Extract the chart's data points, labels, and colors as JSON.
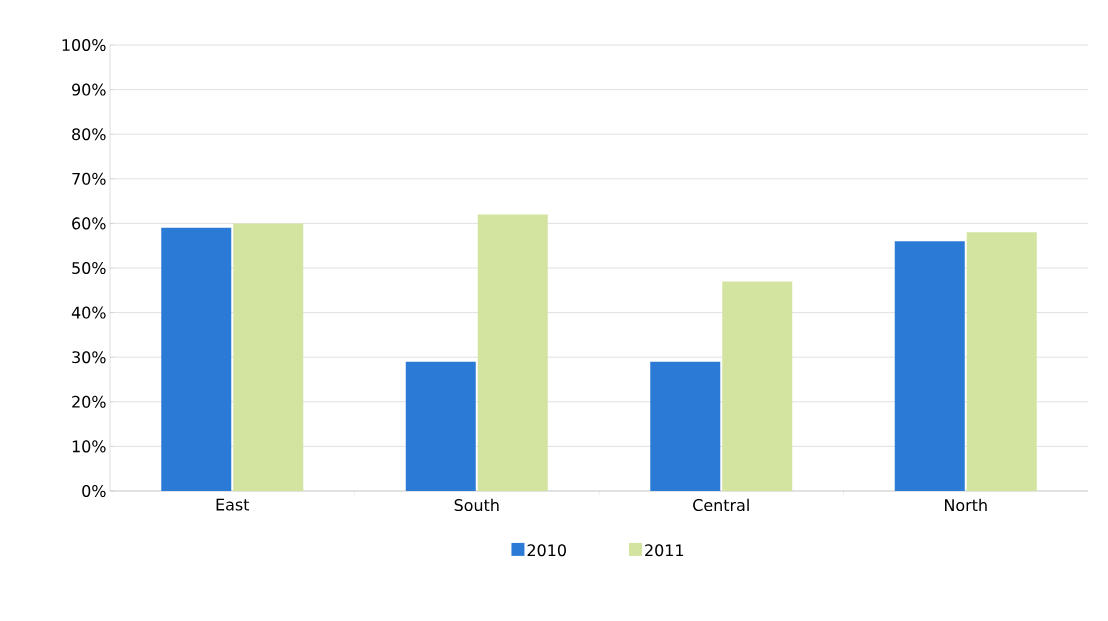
{
  "chart_data": {
    "type": "bar",
    "categories": [
      "East",
      "South",
      "Central",
      "North"
    ],
    "series": [
      {
        "name": "2010",
        "color": "#2b7bd6",
        "values": [
          59,
          29,
          29,
          56
        ]
      },
      {
        "name": "2011",
        "color": "#d3e3a0",
        "values": [
          60,
          62,
          47,
          58
        ]
      }
    ],
    "ylim": [
      0,
      100
    ],
    "yticks": [
      {
        "value": 0,
        "label": "0%"
      },
      {
        "value": 10,
        "label": "10%"
      },
      {
        "value": 20,
        "label": "20%"
      },
      {
        "value": 30,
        "label": "30%"
      },
      {
        "value": 40,
        "label": "40%"
      },
      {
        "value": 50,
        "label": "50%"
      },
      {
        "value": 60,
        "label": "60%"
      },
      {
        "value": 70,
        "label": "70%"
      },
      {
        "value": 80,
        "label": "80%"
      },
      {
        "value": 90,
        "label": "90%"
      },
      {
        "value": 100,
        "label": "100%"
      }
    ],
    "grid": "y",
    "legend": "bottom"
  }
}
